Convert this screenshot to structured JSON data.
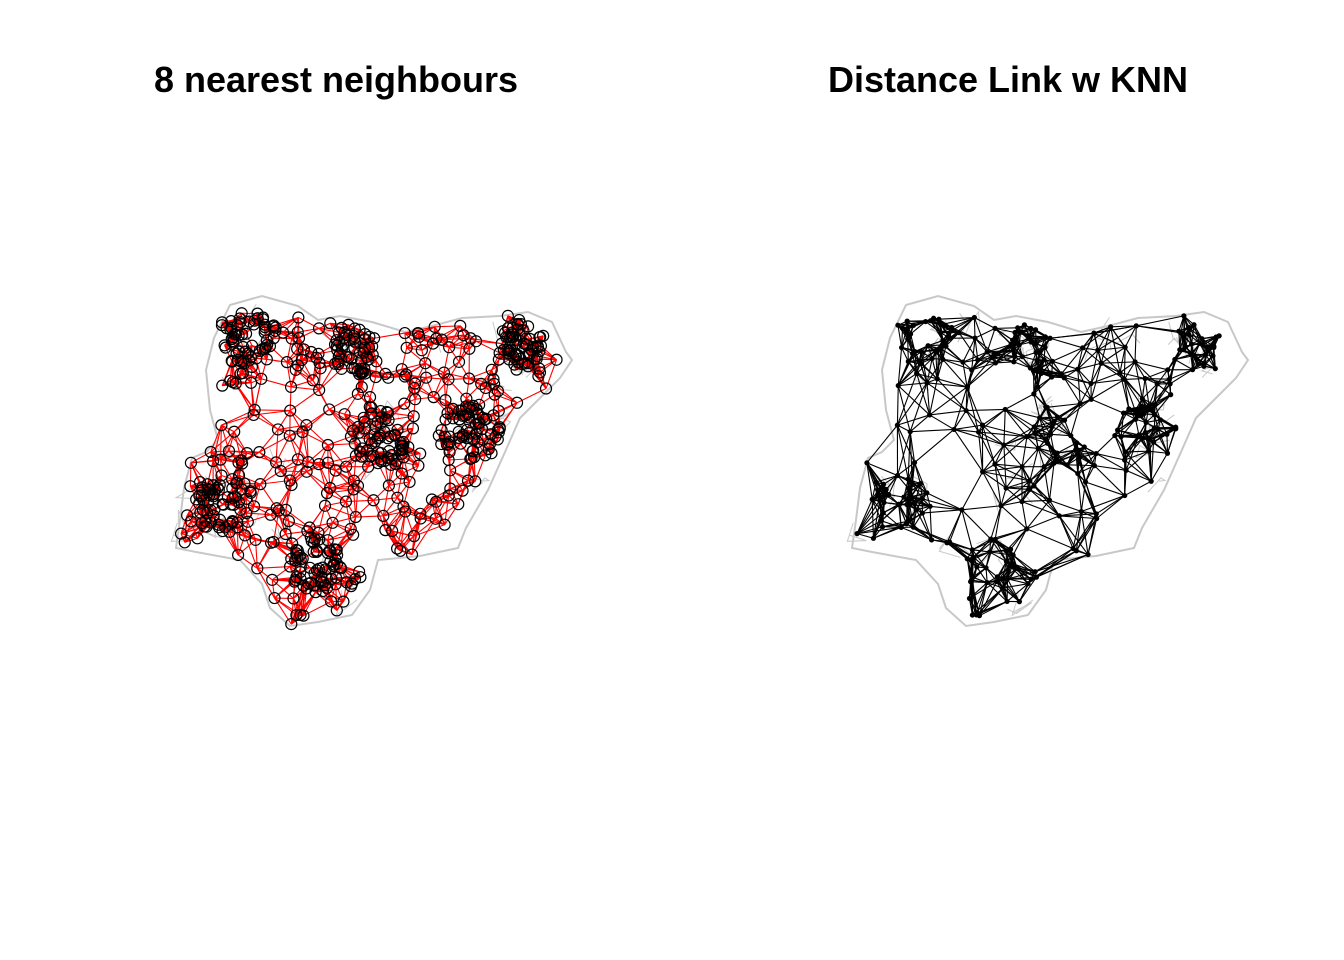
{
  "panels": [
    {
      "title": "8 nearest neighbours",
      "boundary_color": "#c8c8c8",
      "link_color": "#ff0000",
      "point_color": "#000000",
      "point_style": "open-circle"
    },
    {
      "title": "Distance Link w KNN",
      "boundary_color": "#c8c8c8",
      "link_color": "#000000",
      "point_color": "#000000",
      "point_style": "filled-dot"
    }
  ]
}
